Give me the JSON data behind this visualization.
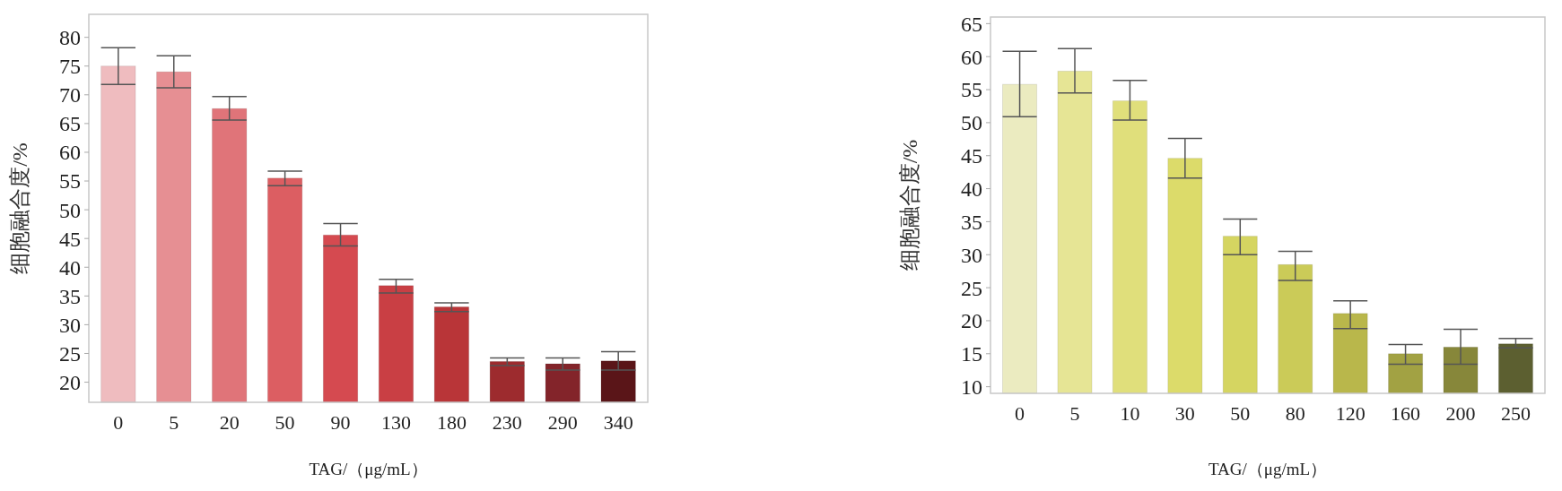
{
  "chart_data": [
    {
      "type": "bar",
      "xlabel": "TAG/（μg/mL）",
      "ylabel": "细胞融合度/%",
      "categories": [
        "0",
        "5",
        "20",
        "50",
        "90",
        "130",
        "180",
        "230",
        "290",
        "340"
      ],
      "values": [
        75,
        74,
        67.6,
        55.5,
        45.6,
        36.8,
        33.1,
        23.6,
        23.2,
        23.7
      ],
      "errors": [
        [
          71.8,
          78.2
        ],
        [
          71.2,
          76.8
        ],
        [
          65.6,
          69.7
        ],
        [
          54.2,
          56.7
        ],
        [
          43.7,
          47.6
        ],
        [
          35.5,
          37.9
        ],
        [
          32.3,
          33.8
        ],
        [
          22.9,
          24.2
        ],
        [
          22.1,
          24.2
        ],
        [
          22.1,
          25.3
        ]
      ],
      "colors": [
        "#efbcbf",
        "#e68f93",
        "#e07479",
        "#dc5e62",
        "#d54a50",
        "#c93f44",
        "#b93538",
        "#9d2b2e",
        "#83242a",
        "#5a1518"
      ],
      "ylim": [
        16.5,
        84
      ],
      "yticks": [
        20,
        25,
        30,
        35,
        40,
        45,
        50,
        55,
        60,
        65,
        70,
        75,
        80
      ],
      "grid": false
    },
    {
      "type": "bar",
      "xlabel": "TAG/（μg/mL）",
      "ylabel": "细胞融合度/%",
      "categories": [
        "0",
        "5",
        "10",
        "30",
        "50",
        "80",
        "120",
        "160",
        "200",
        "250"
      ],
      "values": [
        55.8,
        57.8,
        53.3,
        44.6,
        32.8,
        28.5,
        21.1,
        15,
        16,
        16.5
      ],
      "errors": [
        [
          50.9,
          60.8
        ],
        [
          54.5,
          61.2
        ],
        [
          50.4,
          56.4
        ],
        [
          41.6,
          47.6
        ],
        [
          30,
          35.4
        ],
        [
          26.1,
          30.5
        ],
        [
          18.8,
          23
        ],
        [
          13.4,
          16.4
        ],
        [
          13.4,
          18.7
        ],
        [
          15.9,
          17.3
        ]
      ],
      "colors": [
        "#ebebc0",
        "#e6e595",
        "#e0df7b",
        "#dcdb6a",
        "#d5d561",
        "#cbcb58",
        "#b9b74b",
        "#a2a243",
        "#87873a",
        "#5c5f30"
      ],
      "ylim": [
        9,
        66
      ],
      "yticks": [
        10,
        15,
        20,
        25,
        30,
        35,
        40,
        45,
        50,
        55,
        60,
        65
      ],
      "grid": false
    }
  ]
}
